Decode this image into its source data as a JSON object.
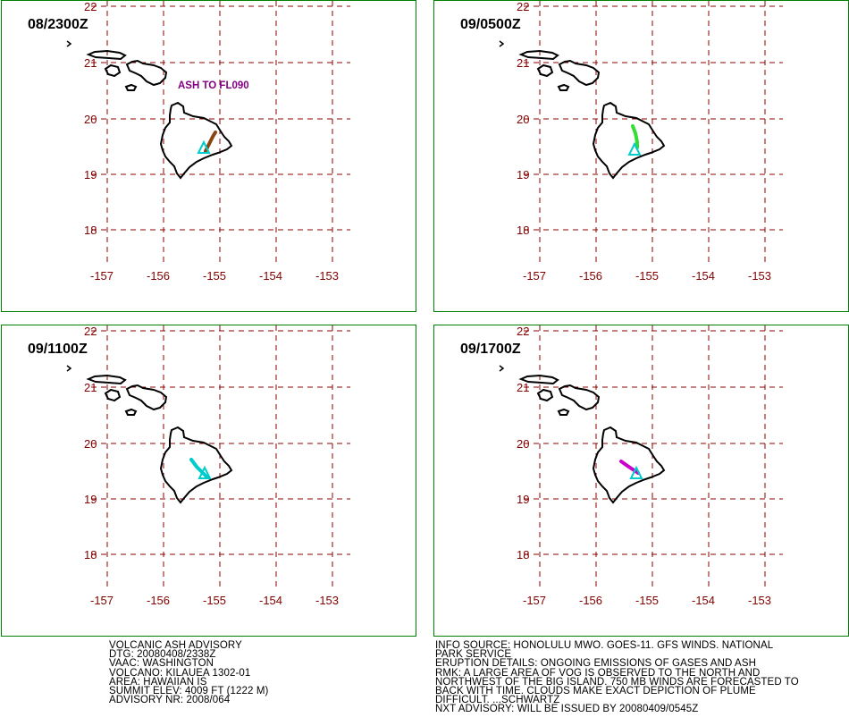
{
  "panels": [
    {
      "title": "08/2300Z",
      "plume_color": "#8b4513",
      "note": "ASH TO FL090"
    },
    {
      "title": "09/0500Z",
      "plume_color": "#33dd33",
      "note": ""
    },
    {
      "title": "09/1100Z",
      "plume_color": "#00cccc",
      "note": ""
    },
    {
      "title": "09/1700Z",
      "plume_color": "#cc00cc",
      "note": ""
    }
  ],
  "axes": {
    "lat_ticks": [
      "22",
      "21",
      "20",
      "19",
      "18"
    ],
    "lon_ticks": [
      "-157",
      "-156",
      "-155",
      "-154",
      "-153"
    ]
  },
  "colors": {
    "border": "#008000",
    "grid": "#8b0000",
    "tick_text": "#800000",
    "volcano": "#00cccc"
  },
  "left_text": [
    "VOLCANIC ASH ADVISORY",
    "DTG: 20080408/2338Z",
    "VAAC: WASHINGTON",
    "VOLCANO: KILAUEA 1302-01",
    "AREA: HAWAIIAN IS",
    "SUMMIT ELEV: 4009 FT (1222 M)",
    "ADVISORY NR: 2008/064"
  ],
  "right_text": [
    "INFO SOURCE: HONOLULU MWO. GOES-11. GFS WINDS. NATIONAL",
    "PARK SERVICE",
    "ERUPTION DETAILS: ONGOING EMISSIONS OF GASES AND ASH",
    "RMK: A LARGE AREA OF VOG IS OBSERVED TO THE NORTH AND",
    "NORTHWEST OF THE BIG ISLAND. 750 MB WINDS ARE FORECASTED TO",
    "BACK WITH TIME. CLOUDS MAKE EXACT DEPICTION OF PLUME",
    "DIFFICULT. ...SCHWARTZ",
    "NXT ADVISORY: WILL BE ISSUED BY 20080409/0545Z"
  ]
}
